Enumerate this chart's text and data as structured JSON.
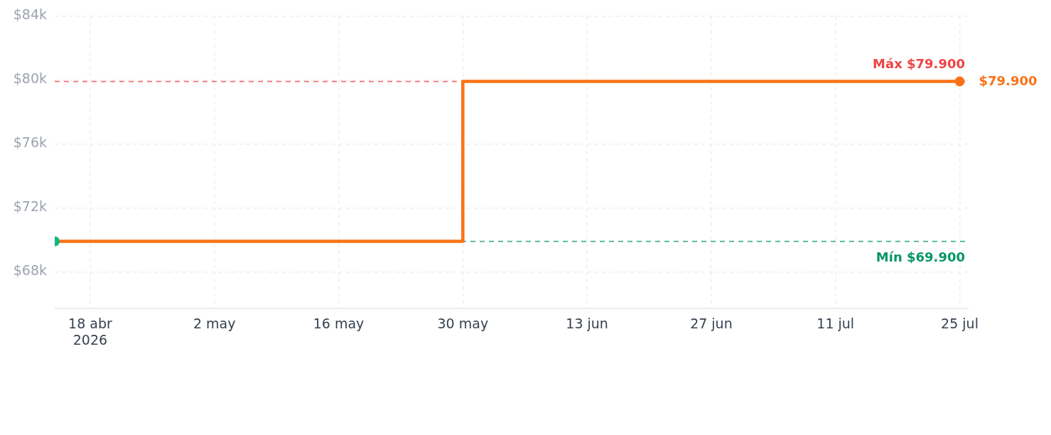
{
  "chart_data": {
    "type": "step",
    "xlim": [
      "2026-04-14",
      "2026-07-26"
    ],
    "xticks": [
      {
        "value": "2026-04-18",
        "label": "18 abr\n2026"
      },
      {
        "value": "2026-05-02",
        "label": "2 may"
      },
      {
        "value": "2026-05-16",
        "label": "16 may"
      },
      {
        "value": "2026-05-30",
        "label": "30 may"
      },
      {
        "value": "2026-06-13",
        "label": "13 jun"
      },
      {
        "value": "2026-06-27",
        "label": "27 jun"
      },
      {
        "value": "2026-07-11",
        "label": "11 jul"
      },
      {
        "value": "2026-07-25",
        "label": "25 jul"
      }
    ],
    "ylim": [
      65700,
      84000
    ],
    "yticks": [
      {
        "value": 68000,
        "label": "$68k"
      },
      {
        "value": 72000,
        "label": "$72k"
      },
      {
        "value": 76000,
        "label": "$76k"
      },
      {
        "value": 80000,
        "label": "$80k"
      },
      {
        "value": 84000,
        "label": "$84k"
      }
    ],
    "grid": true,
    "series": [
      {
        "color": "#f97316",
        "x": [
          "2026-04-14",
          "2026-05-30",
          "2026-07-25"
        ],
        "values": [
          69900,
          79900,
          79900
        ],
        "marker": "none"
      },
      {
        "type": "scatter",
        "color": "#f97316",
        "x": [
          "2026-07-25"
        ],
        "values": [
          79900
        ],
        "value_labels": [
          "$79.900"
        ],
        "marker": "circle"
      },
      {
        "type": "scatter",
        "color": "#10b981",
        "x": [
          "2026-04-14"
        ],
        "values": [
          69900
        ],
        "marker": "circle"
      }
    ],
    "ref_lines": [
      {
        "axis": "y",
        "value": 79900,
        "label": "Máx $79.900",
        "color": "#ef4444",
        "line_style": "dashed"
      },
      {
        "axis": "y",
        "value": 69900,
        "label": "Mín $69.900",
        "color": "#059669",
        "line_style": "dashed"
      }
    ]
  }
}
